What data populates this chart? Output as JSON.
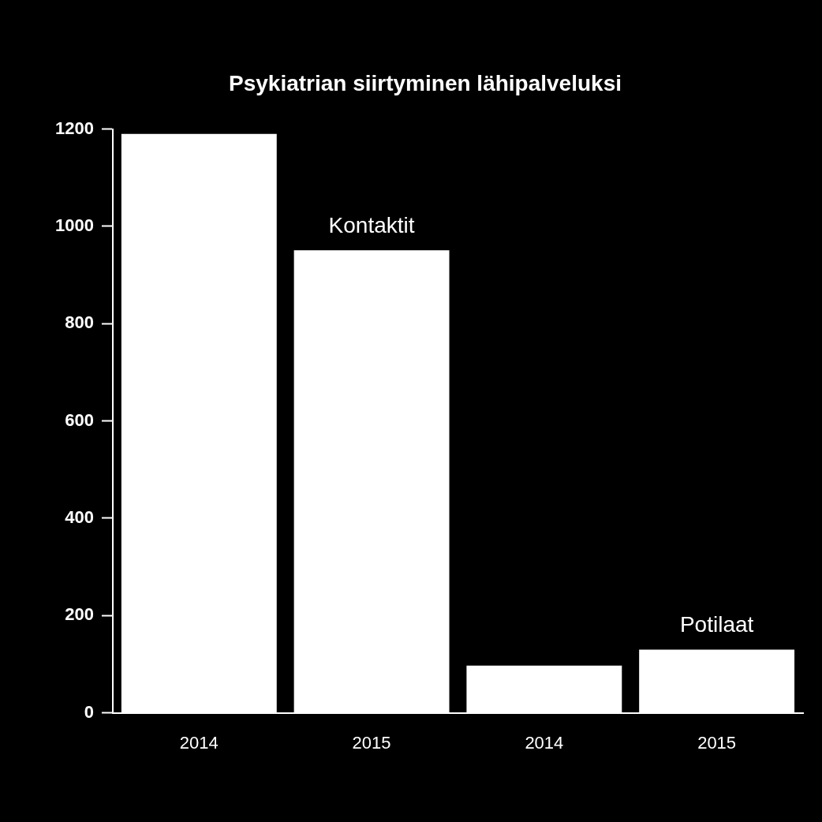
{
  "chart_data": {
    "type": "bar",
    "title": "Psykiatrian siirtyminen lähipalveluksi",
    "categories": [
      "2014",
      "2015",
      "2014",
      "2015"
    ],
    "values": [
      1190,
      951,
      97,
      130
    ],
    "color": "#ffffff",
    "ylim": [
      0,
      1200
    ],
    "yticks": [
      0,
      200,
      400,
      600,
      800,
      1000,
      1200
    ],
    "grid": false,
    "legend": false,
    "annotations": [
      "Kontaktit",
      "Potilaat"
    ]
  }
}
